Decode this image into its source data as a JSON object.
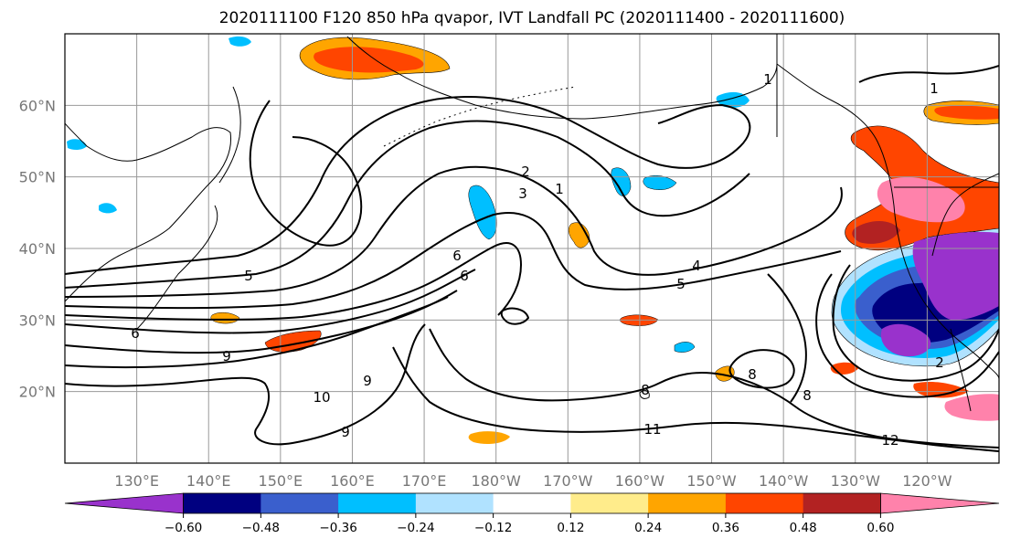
{
  "title": "2020111100 F120 850 hPa qvapor, IVT Landfall PC (2020111400 - 2020111600)",
  "map": {
    "lat_labels": [
      "60°N",
      "50°N",
      "40°N",
      "30°N",
      "20°N"
    ],
    "lat_values": [
      60,
      50,
      40,
      30,
      20
    ],
    "lon_labels": [
      "130°E",
      "140°E",
      "150°E",
      "160°E",
      "170°E",
      "180°W",
      "170°W",
      "160°W",
      "150°W",
      "140°W",
      "130°W",
      "120°W"
    ],
    "lon_values": [
      130,
      140,
      150,
      160,
      170,
      180,
      190,
      200,
      210,
      220,
      230,
      240
    ],
    "lon_range": [
      120,
      250
    ],
    "lat_range": [
      10,
      70
    ],
    "gridlines": true,
    "contour_labels": [
      "1",
      "1",
      "1",
      "2",
      "3",
      "4",
      "5",
      "6",
      "6",
      "9",
      "10",
      "9",
      "9",
      "8",
      "8",
      "8",
      "11",
      "12",
      "2",
      "6",
      "5"
    ]
  },
  "colorbar": {
    "tick_labels": [
      "−0.60",
      "−0.48",
      "−0.36",
      "−0.24",
      "−0.12",
      "0.12",
      "0.24",
      "0.36",
      "0.48",
      "0.60"
    ],
    "colors": [
      "#9932cc",
      "#000080",
      "#3a5fcd",
      "#00bfff",
      "#b0e2ff",
      "#ffffff",
      "#ffec8b",
      "#ffa500",
      "#ff4500",
      "#b22222",
      "#ff82ab"
    ]
  }
}
